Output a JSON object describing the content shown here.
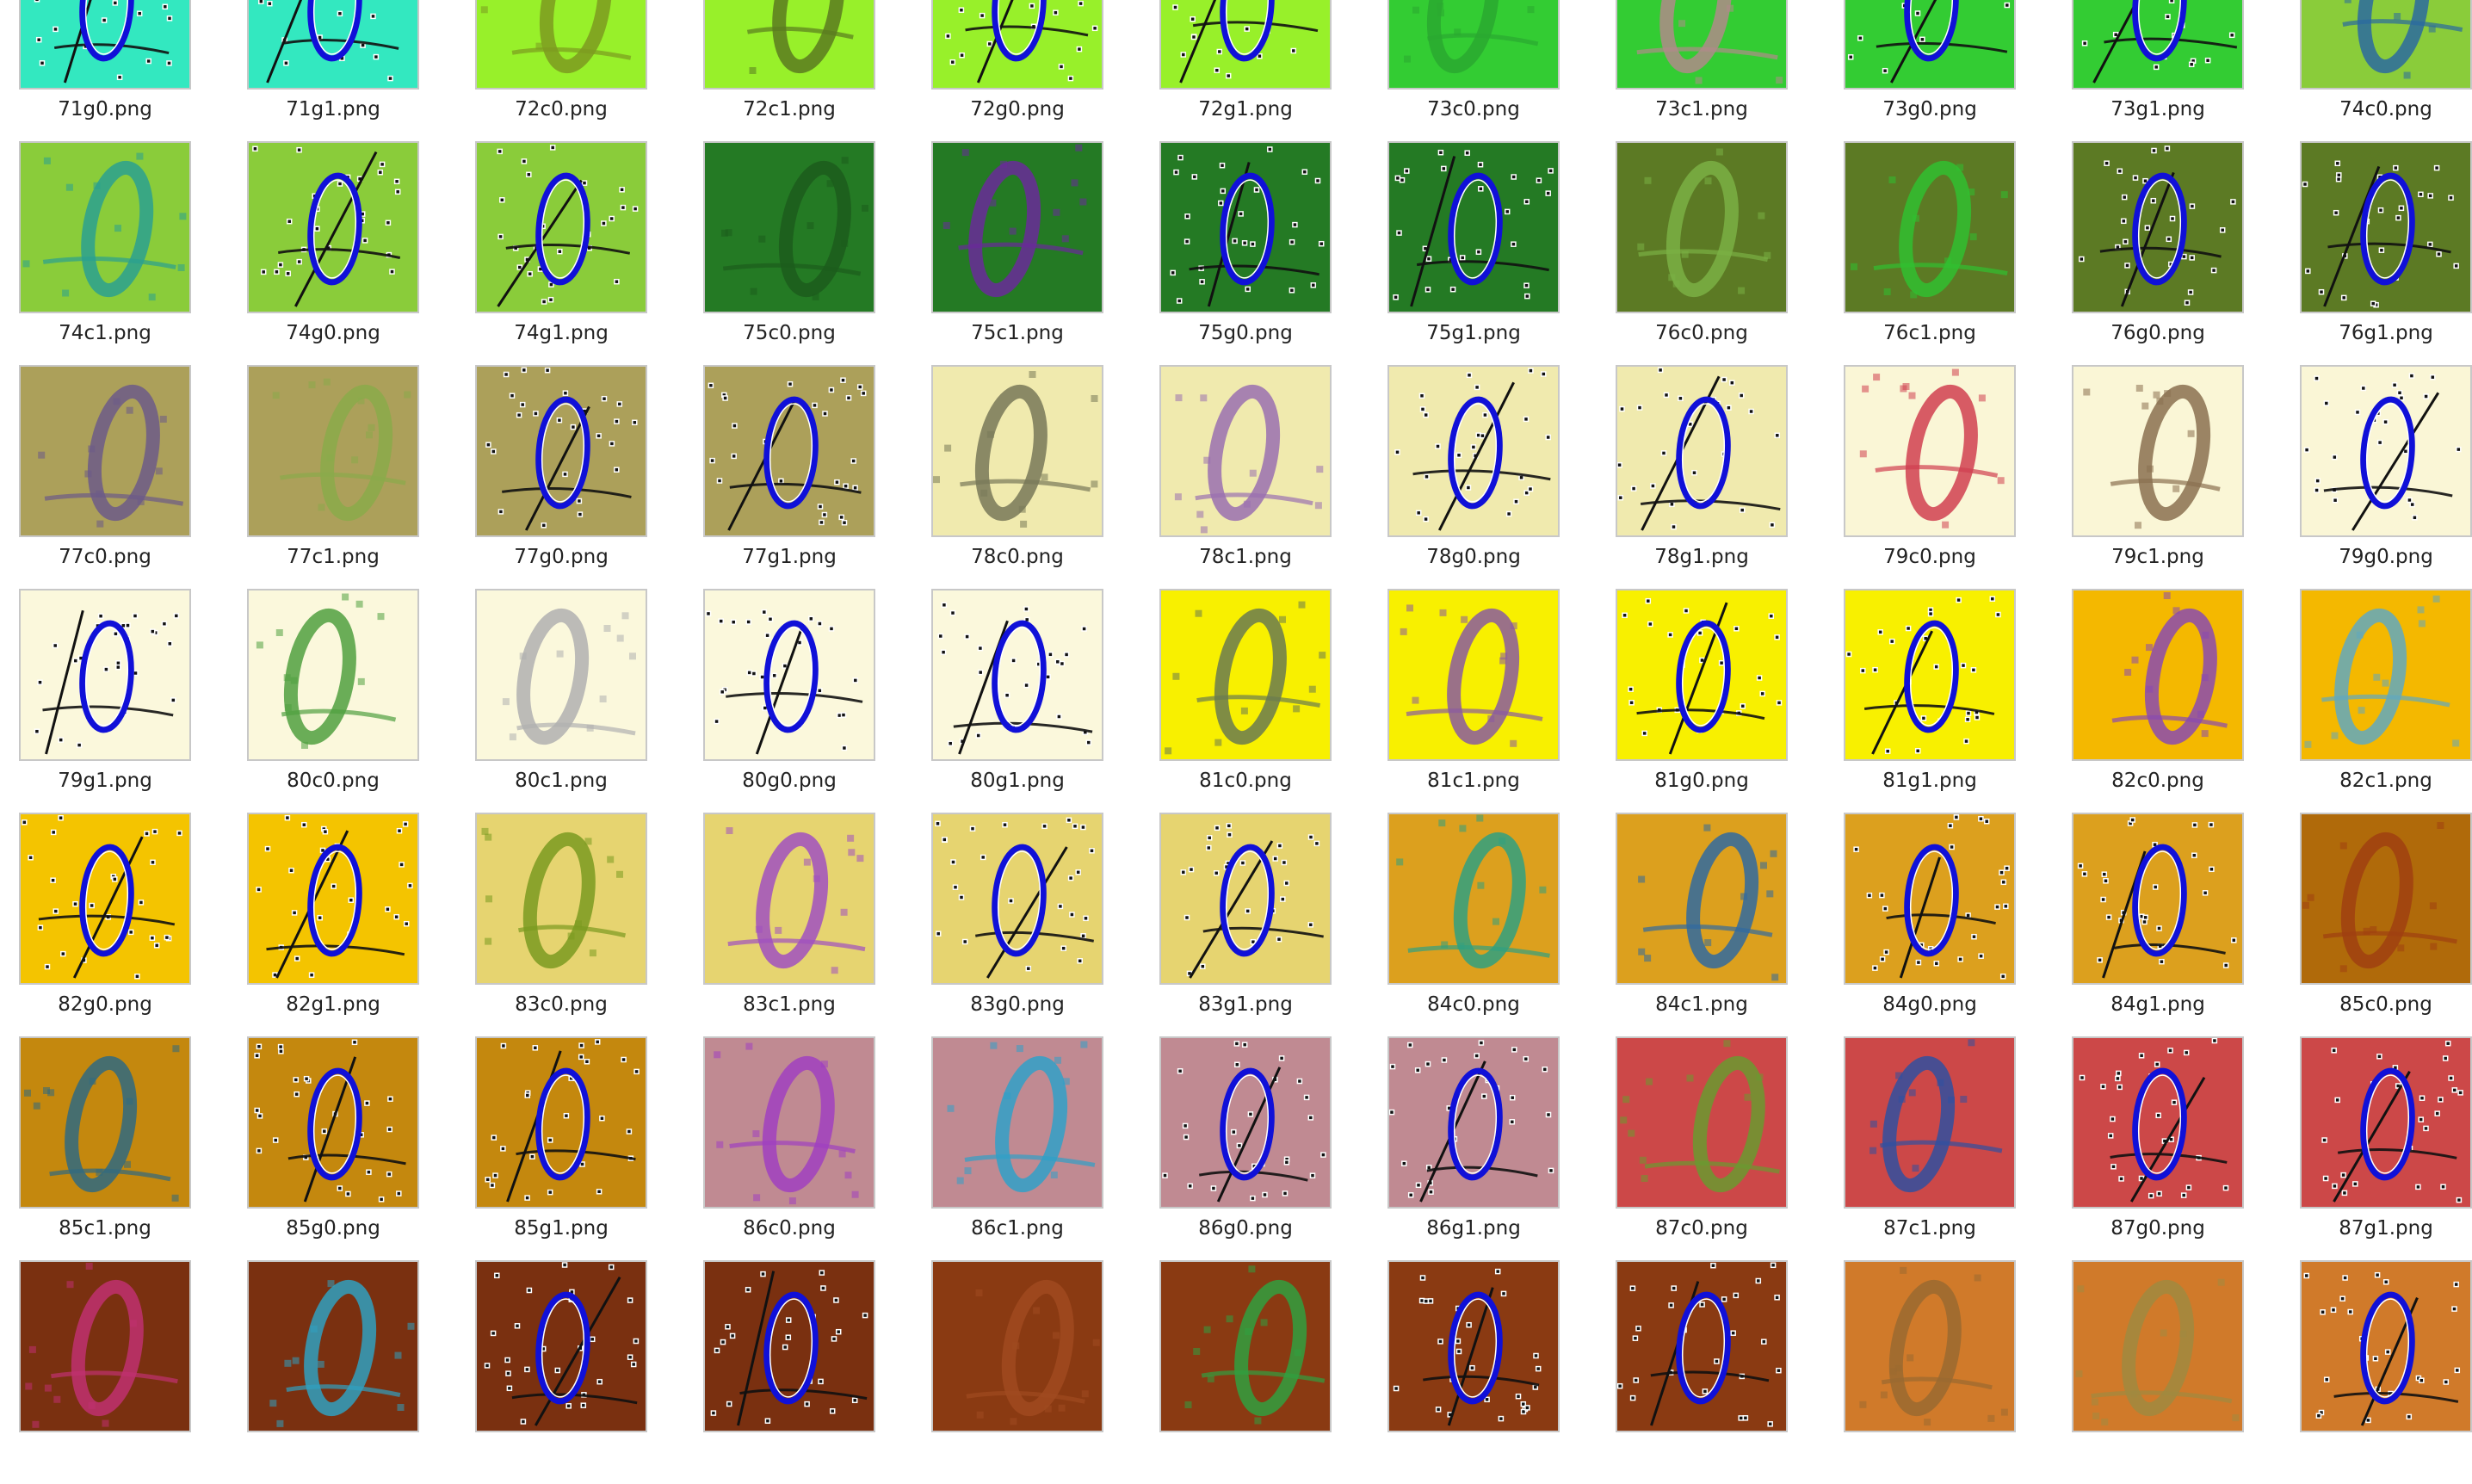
{
  "files": [
    {
      "name": "71g0.png",
      "bg": "#33e8c0",
      "digit": "#1010d8",
      "style": "g"
    },
    {
      "name": "71g1.png",
      "bg": "#33e8c0",
      "digit": "#1010d8",
      "style": "g"
    },
    {
      "name": "72c0.png",
      "bg": "#98f02a",
      "digit": "#7c9a20",
      "style": "c"
    },
    {
      "name": "72c1.png",
      "bg": "#98f02a",
      "digit": "#5a7a20",
      "style": "c"
    },
    {
      "name": "72g0.png",
      "bg": "#98f02a",
      "digit": "#1010d8",
      "style": "g"
    },
    {
      "name": "72g1.png",
      "bg": "#98f02a",
      "digit": "#1010d8",
      "style": "g"
    },
    {
      "name": "73c0.png",
      "bg": "#33cc33",
      "digit": "#2aa830",
      "style": "c"
    },
    {
      "name": "73c1.png",
      "bg": "#33cc33",
      "digit": "#b08a8a",
      "style": "c"
    },
    {
      "name": "73g0.png",
      "bg": "#33cc33",
      "digit": "#1010d8",
      "style": "g"
    },
    {
      "name": "73g1.png",
      "bg": "#33cc33",
      "digit": "#1010d8",
      "style": "g"
    },
    {
      "name": "74c0.png",
      "bg": "#8acc3a",
      "digit": "#2a6aa0",
      "style": "c"
    },
    {
      "name": "74c1.png",
      "bg": "#8acc3a",
      "digit": "#2aa090",
      "style": "c"
    },
    {
      "name": "74g0.png",
      "bg": "#8acc3a",
      "digit": "#1010d8",
      "style": "g"
    },
    {
      "name": "74g1.png",
      "bg": "#8acc3a",
      "digit": "#1010d8",
      "style": "g"
    },
    {
      "name": "75c0.png",
      "bg": "#247a24",
      "digit": "#1c5c1c",
      "style": "c"
    },
    {
      "name": "75c1.png",
      "bg": "#247a24",
      "digit": "#6a2a9a",
      "style": "c"
    },
    {
      "name": "75g0.png",
      "bg": "#247a24",
      "digit": "#1010d8",
      "style": "g"
    },
    {
      "name": "75g1.png",
      "bg": "#247a24",
      "digit": "#1010d8",
      "style": "g"
    },
    {
      "name": "76c0.png",
      "bg": "#5c7a24",
      "digit": "#7ab044",
      "style": "c"
    },
    {
      "name": "76c1.png",
      "bg": "#5c7a24",
      "digit": "#30c030",
      "style": "c"
    },
    {
      "name": "76g0.png",
      "bg": "#5c7a24",
      "digit": "#1010d8",
      "style": "g"
    },
    {
      "name": "76g1.png",
      "bg": "#5c7a24",
      "digit": "#1010d8",
      "style": "g"
    },
    {
      "name": "77c0.png",
      "bg": "#aca05a",
      "digit": "#6c5a88",
      "style": "c"
    },
    {
      "name": "77c1.png",
      "bg": "#aca05a",
      "digit": "#8aaa4a",
      "style": "c"
    },
    {
      "name": "77g0.png",
      "bg": "#aca05a",
      "digit": "#1010d8",
      "style": "g"
    },
    {
      "name": "77g1.png",
      "bg": "#aca05a",
      "digit": "#1010d8",
      "style": "g"
    },
    {
      "name": "78c0.png",
      "bg": "#f0eaae",
      "digit": "#787858",
      "style": "c"
    },
    {
      "name": "78c1.png",
      "bg": "#f0eaae",
      "digit": "#9a70b0",
      "style": "c"
    },
    {
      "name": "78g0.png",
      "bg": "#f0eaae",
      "digit": "#1010d8",
      "style": "g"
    },
    {
      "name": "78g1.png",
      "bg": "#f0eaae",
      "digit": "#1010d8",
      "style": "g"
    },
    {
      "name": "79c0.png",
      "bg": "#faf6d6",
      "digit": "#d04050",
      "style": "c"
    },
    {
      "name": "79c1.png",
      "bg": "#faf6d6",
      "digit": "#8a7050",
      "style": "c"
    },
    {
      "name": "79g0.png",
      "bg": "#faf6d6",
      "digit": "#1010d8",
      "style": "g"
    },
    {
      "name": "79g1.png",
      "bg": "#fbf8dc",
      "digit": "#1010d8",
      "style": "g"
    },
    {
      "name": "80c0.png",
      "bg": "#fbf8dc",
      "digit": "#50a040",
      "style": "c"
    },
    {
      "name": "80c1.png",
      "bg": "#fbf8dc",
      "digit": "#b0b0b0",
      "style": "c"
    },
    {
      "name": "80g0.png",
      "bg": "#fbf8dc",
      "digit": "#1010d8",
      "style": "g"
    },
    {
      "name": "80g1.png",
      "bg": "#fbf8dc",
      "digit": "#1010d8",
      "style": "g"
    },
    {
      "name": "81c0.png",
      "bg": "#f8f000",
      "digit": "#6a7a50",
      "style": "c"
    },
    {
      "name": "81c1.png",
      "bg": "#f8f000",
      "digit": "#8a5aa0",
      "style": "c"
    },
    {
      "name": "81g0.png",
      "bg": "#f8f000",
      "digit": "#1010d8",
      "style": "g"
    },
    {
      "name": "81g1.png",
      "bg": "#f8f000",
      "digit": "#1010d8",
      "style": "g"
    },
    {
      "name": "82c0.png",
      "bg": "#f4b800",
      "digit": "#8a4ab0",
      "style": "c"
    },
    {
      "name": "82c1.png",
      "bg": "#f4b800",
      "digit": "#60a8c0",
      "style": "c"
    },
    {
      "name": "82g0.png",
      "bg": "#f4c400",
      "digit": "#1010d8",
      "style": "g"
    },
    {
      "name": "82g1.png",
      "bg": "#f4c400",
      "digit": "#1010d8",
      "style": "g"
    },
    {
      "name": "83c0.png",
      "bg": "#e6d470",
      "digit": "#7a9a20",
      "style": "c"
    },
    {
      "name": "83c1.png",
      "bg": "#e6d470",
      "digit": "#a050c0",
      "style": "c"
    },
    {
      "name": "83g0.png",
      "bg": "#e6d470",
      "digit": "#1010d8",
      "style": "g"
    },
    {
      "name": "83g1.png",
      "bg": "#e6d470",
      "digit": "#1010d8",
      "style": "g"
    },
    {
      "name": "84c0.png",
      "bg": "#dca01e",
      "digit": "#30a080",
      "style": "c"
    },
    {
      "name": "84c1.png",
      "bg": "#dca01e",
      "digit": "#306aa0",
      "style": "c"
    },
    {
      "name": "84g0.png",
      "bg": "#dca01e",
      "digit": "#1010d8",
      "style": "g"
    },
    {
      "name": "84g1.png",
      "bg": "#dca01e",
      "digit": "#1010d8",
      "style": "g"
    },
    {
      "name": "85c0.png",
      "bg": "#b06a0a",
      "digit": "#a04010",
      "style": "c"
    },
    {
      "name": "85c1.png",
      "bg": "#c4880e",
      "digit": "#306a80",
      "style": "c"
    },
    {
      "name": "85g0.png",
      "bg": "#c4880e",
      "digit": "#1010d8",
      "style": "g"
    },
    {
      "name": "85g1.png",
      "bg": "#c4880e",
      "digit": "#1010d8",
      "style": "g"
    },
    {
      "name": "86c0.png",
      "bg": "#c08a92",
      "digit": "#a040c0",
      "style": "c"
    },
    {
      "name": "86c1.png",
      "bg": "#c08a92",
      "digit": "#30a0c8",
      "style": "c"
    },
    {
      "name": "86g0.png",
      "bg": "#c08a92",
      "digit": "#1010d8",
      "style": "g"
    },
    {
      "name": "86g1.png",
      "bg": "#c08a92",
      "digit": "#1010d8",
      "style": "g"
    },
    {
      "name": "87c0.png",
      "bg": "#cc4848",
      "digit": "#6a9a30",
      "style": "c"
    },
    {
      "name": "87c1.png",
      "bg": "#cc4848",
      "digit": "#3050a0",
      "style": "c"
    },
    {
      "name": "87g0.png",
      "bg": "#cc4848",
      "digit": "#1010d8",
      "style": "g"
    },
    {
      "name": "87g1.png",
      "bg": "#cc4848",
      "digit": "#1010d8",
      "style": "g"
    },
    {
      "name": "",
      "bg": "#7a3010",
      "digit": "#c03070",
      "style": "c"
    },
    {
      "name": "",
      "bg": "#7a3010",
      "digit": "#30a0c0",
      "style": "c"
    },
    {
      "name": "",
      "bg": "#7a3010",
      "digit": "#1010d8",
      "style": "g"
    },
    {
      "name": "",
      "bg": "#7a3010",
      "digit": "#1010d8",
      "style": "g"
    },
    {
      "name": "",
      "bg": "#8a3a12",
      "digit": "#a04a20",
      "style": "c"
    },
    {
      "name": "",
      "bg": "#8a3a12",
      "digit": "#30a040",
      "style": "c"
    },
    {
      "name": "",
      "bg": "#8a3a12",
      "digit": "#1010d8",
      "style": "g"
    },
    {
      "name": "",
      "bg": "#8a3a12",
      "digit": "#1010d8",
      "style": "g"
    },
    {
      "name": "",
      "bg": "#d07a2a",
      "digit": "#9a6a30",
      "style": "c"
    },
    {
      "name": "",
      "bg": "#d07a2a",
      "digit": "#a08a40",
      "style": "c"
    },
    {
      "name": "",
      "bg": "#d07a2a",
      "digit": "#1010d8",
      "style": "g"
    }
  ]
}
